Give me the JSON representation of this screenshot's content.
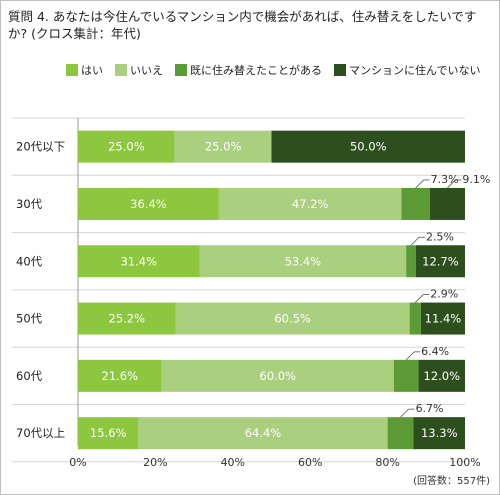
{
  "title": "質問 4. あなたは今住んでいるマンション内で機会があれば、住み替えをしたいですか? (クロス集計：年代)",
  "note": "(回答数：557件)",
  "chart_data": {
    "type": "bar",
    "orientation": "horizontal",
    "stacked": true,
    "categories": [
      "20代以下",
      "30代",
      "40代",
      "50代",
      "60代",
      "70代以上"
    ],
    "series": [
      {
        "name": "はい",
        "color": "#8dc63f",
        "values": [
          25.0,
          36.4,
          31.4,
          25.2,
          21.6,
          15.6
        ]
      },
      {
        "name": "いいえ",
        "color": "#a9cf7f",
        "values": [
          25.0,
          47.2,
          53.4,
          60.5,
          60.0,
          64.4
        ]
      },
      {
        "name": "既に住み替えたことがある",
        "color": "#5b9a34",
        "values": [
          0.0,
          7.3,
          2.5,
          2.9,
          6.4,
          6.7
        ]
      },
      {
        "name": "マンションに住んでいない",
        "color": "#2d4f1e",
        "values": [
          50.0,
          9.1,
          12.7,
          11.4,
          12.0,
          13.3
        ]
      }
    ],
    "xlim": [
      0,
      100
    ],
    "x_ticks": [
      "0%",
      "20%",
      "40%",
      "60%",
      "80%",
      "100%"
    ],
    "grid": false,
    "legend_position": "top"
  }
}
